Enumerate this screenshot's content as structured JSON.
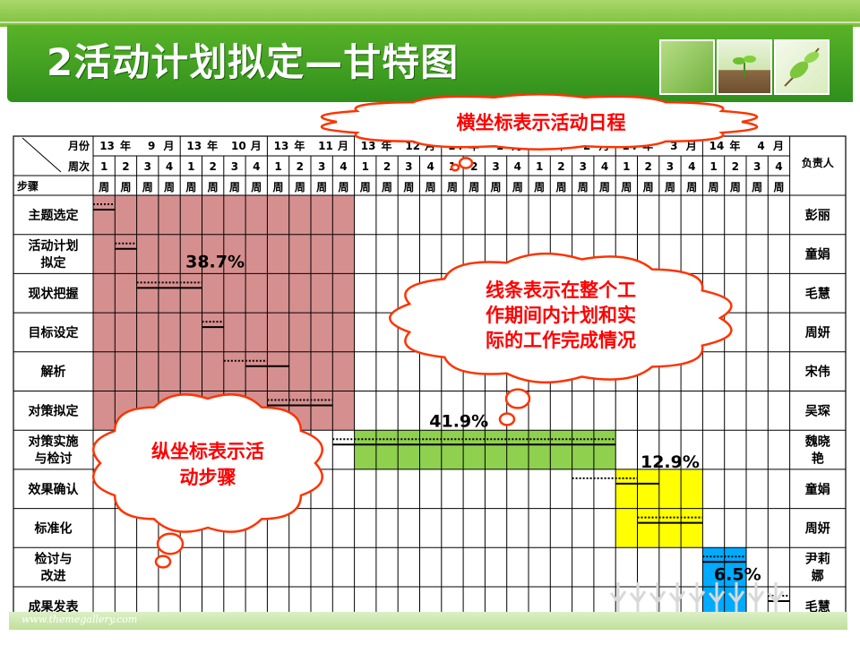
{
  "slide": {
    "title": "2活动计划拟定—甘特图",
    "footer_url": "www.themegallery.com",
    "colors": {
      "title_bar": "#3a9a20",
      "red_region": "#d68f8f",
      "green_region": "#8fd14f",
      "yellow_region": "#ffff00",
      "blue_region": "#00aaff",
      "callout": "#ff0000"
    }
  },
  "callouts": {
    "top": "横坐标表示活动日程",
    "middle_lines": [
      "线条表示在整个工",
      "作期间内计划和实",
      "际的工作完成情况"
    ],
    "left_lines": [
      "纵坐标表示活",
      "动步骤"
    ]
  },
  "chart_data": {
    "type": "gantt",
    "header": {
      "month_label": "月份",
      "week_label": "周次",
      "step_label": "步骤",
      "owner_label": "负责人",
      "week_unit": "周",
      "months": [
        [
          "13",
          "年",
          "9",
          "月"
        ],
        [
          "13",
          "年",
          "10",
          "月"
        ],
        [
          "13",
          "年",
          "11",
          "月"
        ],
        [
          "13",
          "年",
          "12",
          "月"
        ],
        [
          "14",
          "年",
          "1",
          "月"
        ],
        [
          "14",
          "年",
          "2",
          "月"
        ],
        [
          "14",
          "年",
          "3",
          "月"
        ],
        [
          "14",
          "年",
          "4",
          "月"
        ]
      ],
      "weeks": [
        "1",
        "2",
        "3",
        "4"
      ]
    },
    "rows": [
      {
        "lines": [
          "主题选定"
        ],
        "owner": [
          "彭丽"
        ],
        "plan": [
          0,
          1
        ],
        "actual": [
          0,
          1
        ]
      },
      {
        "lines": [
          "活动计划",
          "拟定"
        ],
        "owner": [
          "童娟"
        ],
        "plan": [
          1,
          2
        ],
        "actual": [
          1,
          2
        ]
      },
      {
        "lines": [
          "现状把握"
        ],
        "owner": [
          "毛慧"
        ],
        "plan": [
          2,
          5
        ],
        "actual": [
          2,
          5
        ]
      },
      {
        "lines": [
          "目标设定"
        ],
        "owner": [
          "周妍"
        ],
        "plan": [
          5,
          6
        ],
        "actual": [
          5,
          6
        ]
      },
      {
        "lines": [
          "解析"
        ],
        "owner": [
          "宋伟"
        ],
        "plan": [
          6,
          8
        ],
        "actual": [
          7,
          9
        ]
      },
      {
        "lines": [
          "对策拟定"
        ],
        "owner": [
          "吴琛"
        ],
        "plan": [
          8,
          11
        ],
        "actual": [
          8,
          11
        ]
      },
      {
        "lines": [
          "对策实施",
          "与检讨"
        ],
        "owner": [
          "魏晓",
          "艳"
        ],
        "plan": [
          11,
          24
        ],
        "actual": [
          11,
          24
        ]
      },
      {
        "lines": [
          "效果确认"
        ],
        "owner": [
          "童娟"
        ],
        "plan": [
          22,
          25
        ],
        "actual": [
          24,
          26
        ]
      },
      {
        "lines": [
          "标准化"
        ],
        "owner": [
          "周妍"
        ],
        "plan": [
          25,
          28
        ],
        "actual": [
          25,
          28
        ]
      },
      {
        "lines": [
          "检讨与",
          "改进"
        ],
        "owner": [
          "尹莉",
          "娜"
        ],
        "plan": [
          28,
          30
        ],
        "actual": [
          28,
          30
        ]
      },
      {
        "lines": [
          "成果发表"
        ],
        "owner": [
          "毛慧"
        ],
        "plan": [
          31,
          32
        ],
        "actual": [
          31,
          32
        ]
      }
    ],
    "phases": [
      {
        "label": "38.7%",
        "value": 38.7,
        "week_start": 0,
        "week_end": 12,
        "row_start": 0,
        "row_end": 6,
        "color": "#d68f8f"
      },
      {
        "label": "41.9%",
        "value": 41.9,
        "week_start": 12,
        "week_end": 24,
        "row_start": 6,
        "row_end": 7,
        "color": "#8fd14f"
      },
      {
        "label": "12.9%",
        "value": 12.9,
        "week_start": 24,
        "week_end": 28,
        "row_start": 7,
        "row_end": 9,
        "color": "#ffff00"
      },
      {
        "label": "6.5%",
        "value": 6.5,
        "week_start": 28,
        "week_end": 30,
        "row_start": 9,
        "row_end": 11,
        "color": "#00aaff"
      }
    ],
    "legend": {
      "plan": "dotted line",
      "actual": "solid line"
    }
  }
}
